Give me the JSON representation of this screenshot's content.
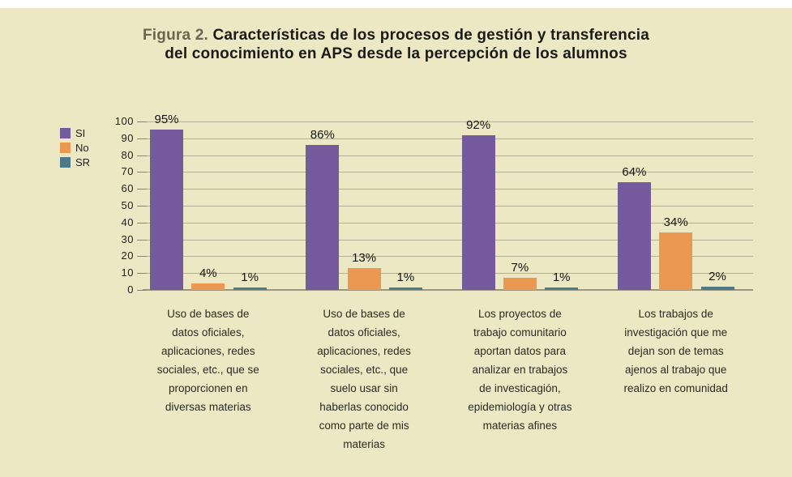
{
  "title": {
    "prefix": "Figura 2.",
    "line1": "Características de los procesos de gestión y transferencia",
    "line2": "del conocimiento en APS desde la percepción de los alumnos"
  },
  "colors": {
    "page_background": "#ffffff",
    "panel_background": "#ece8c4",
    "title_prefix": "#6a654f",
    "title_text": "#1a1a18",
    "gridline": "#b5ae95",
    "axis_line": "#9d967e",
    "si": "#755b9e",
    "no": "#eb9852",
    "sr": "#4c7b87"
  },
  "chart_data": {
    "type": "bar",
    "title": "Figura 2. Características de los procesos de gestión y transferencia del conocimiento en APS desde la percepción de los alumnos",
    "xlabel": "",
    "ylabel": "",
    "ylim": [
      0,
      100
    ],
    "yticks": [
      0,
      10,
      20,
      30,
      40,
      50,
      60,
      70,
      80,
      90,
      100
    ],
    "grid": true,
    "legend_position": "left",
    "value_suffix": "%",
    "categories": [
      "Uso de bases de datos oficiales, aplicaciones, redes sociales, etc., que se proporcionen en diversas materias",
      "Uso de bases de datos oficiales, aplicaciones, redes sociales, etc., que suelo usar sin haberlas conocido como parte de mis materias",
      "Los proyectos de trabajo comunitario aportan datos para analizar en trabajos de investicagión, epidemiología y otras materias afines",
      "Los trabajos de investigación que me dejan son de temas ajenos al trabajo que realizo en comunidad"
    ],
    "categories_wrapped": [
      [
        "Uso de bases de",
        "datos oficiales,",
        "aplicaciones, redes",
        "sociales, etc., que se",
        "proporcionen en",
        "diversas materias"
      ],
      [
        "Uso de bases de",
        "datos oficiales,",
        "aplicaciones, redes",
        "sociales, etc., que",
        "suelo usar sin",
        "haberlas conocido",
        "como parte de mis",
        "materias"
      ],
      [
        "Los proyectos de",
        "trabajo comunitario",
        "aportan datos para",
        "analizar en trabajos",
        "de investicagión,",
        "epidemiología y otras",
        "materias afines"
      ],
      [
        "Los trabajos de",
        "investigación que me",
        "dejan son de temas",
        "ajenos al trabajo que",
        "realizo en comunidad"
      ]
    ],
    "series": [
      {
        "name": "SI",
        "color": "#755b9e",
        "values": [
          95,
          86,
          92,
          64
        ]
      },
      {
        "name": "No",
        "color": "#eb9852",
        "values": [
          4,
          13,
          7,
          34
        ]
      },
      {
        "name": "SR",
        "color": "#4c7b87",
        "values": [
          1,
          1,
          1,
          2
        ]
      }
    ]
  }
}
